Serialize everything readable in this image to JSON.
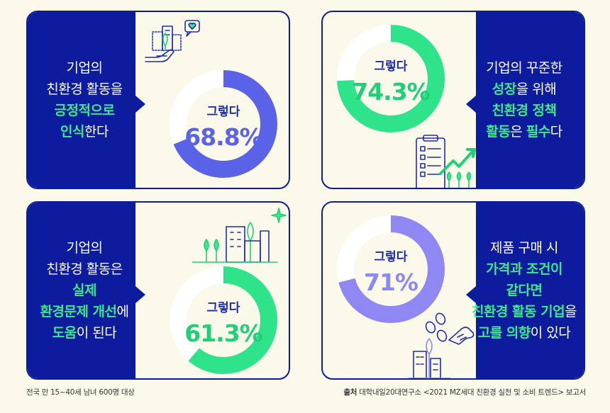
{
  "cards": [
    {
      "lines": [
        [
          {
            "t": "기업의",
            "h": false
          }
        ],
        [
          {
            "t": "친환경 활동을",
            "h": false
          }
        ],
        [
          {
            "t": "긍정적으로",
            "h": true
          }
        ],
        [
          {
            "t": "인식",
            "h": true
          },
          {
            "t": "한다",
            "h": false
          }
        ]
      ],
      "label": "그렇다",
      "value": "68.8%",
      "fraction": 0.688,
      "color": "#5a63e8",
      "track": "#ffffff"
    },
    {
      "lines": [
        [
          {
            "t": "기업의 꾸준한",
            "h": false
          }
        ],
        [
          {
            "t": "성장",
            "h": true
          },
          {
            "t": "을 위해",
            "h": false
          }
        ],
        [
          {
            "t": "친환경 정책",
            "h": true
          }
        ],
        [
          {
            "t": "활동",
            "h": true
          },
          {
            "t": "은 ",
            "h": false
          },
          {
            "t": "필수",
            "h": true
          },
          {
            "t": "다",
            "h": false
          }
        ]
      ],
      "label": "그렇다",
      "value": "74.3%",
      "fraction": 0.743,
      "color": "#2ee38a",
      "track": "#ffffff"
    },
    {
      "lines": [
        [
          {
            "t": "기업의",
            "h": false
          }
        ],
        [
          {
            "t": "친환경 활동은",
            "h": false
          }
        ],
        [
          {
            "t": "실제",
            "h": true
          }
        ],
        [
          {
            "t": "환경문제 개선",
            "h": true
          },
          {
            "t": "에",
            "h": false
          }
        ],
        [
          {
            "t": "도움",
            "h": true
          },
          {
            "t": "이 된다",
            "h": false
          }
        ]
      ],
      "label": "그렇다",
      "value": "61.3%",
      "fraction": 0.613,
      "color": "#2ee38a",
      "track": "#ffffff"
    },
    {
      "lines": [
        [
          {
            "t": "제품 구매 시",
            "h": false
          }
        ],
        [
          {
            "t": "가격과 조건이",
            "h": true
          }
        ],
        [
          {
            "t": "같다면",
            "h": true
          }
        ],
        [
          {
            "t": "친환경 활동 기업",
            "h": true
          },
          {
            "t": "을",
            "h": false
          }
        ],
        [
          {
            "t": "고를 의향",
            "h": true
          },
          {
            "t": "이 있다",
            "h": false
          }
        ]
      ],
      "label": "그렇다",
      "value": "71%",
      "fraction": 0.71,
      "color": "#8f87f2",
      "track": "#ffffff"
    }
  ],
  "footer": {
    "left": "전국 만 15~40세 남녀 600명 대상",
    "source_label": "출처",
    "right": "대학내일20대연구소 <2021 MZ세대 친환경 실천 및 소비 트렌드> 보고서"
  },
  "icons": [
    "hand-city-heart-icon",
    "checklist-growth-icon",
    "green-buildings-icon",
    "coins-hand-icon"
  ]
}
